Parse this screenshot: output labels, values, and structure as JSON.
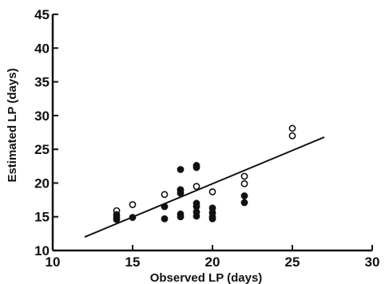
{
  "chart_data": {
    "type": "scatter",
    "title": "",
    "xlabel": "Observed LP (days)",
    "ylabel": "Estimated LP (days)",
    "xlim": [
      10,
      30
    ],
    "ylim": [
      10,
      45
    ],
    "xticks": [
      "10",
      "15",
      "20",
      "25",
      "30"
    ],
    "yticks": [
      "10",
      "15",
      "20",
      "25",
      "30",
      "35",
      "40",
      "45"
    ],
    "grid": false,
    "legend": "none",
    "series": [
      {
        "marker": "open-circle",
        "points": [
          [
            14,
            15.9
          ],
          [
            15,
            16.8
          ],
          [
            17,
            18.3
          ],
          [
            18,
            19.0
          ],
          [
            19,
            19.5
          ],
          [
            20,
            18.7
          ],
          [
            22,
            21.0
          ],
          [
            22,
            19.9
          ],
          [
            25,
            28.1
          ],
          [
            25,
            27.0
          ]
        ]
      },
      {
        "marker": "filled-circle",
        "points": [
          [
            14,
            15.3
          ],
          [
            14,
            14.9
          ],
          [
            14,
            14.6
          ],
          [
            15,
            14.9
          ],
          [
            17,
            16.5
          ],
          [
            17,
            14.7
          ],
          [
            18,
            22.0
          ],
          [
            18,
            19.0
          ],
          [
            18,
            18.5
          ],
          [
            18,
            15.4
          ],
          [
            18,
            15.0
          ],
          [
            19,
            22.6
          ],
          [
            19,
            22.3
          ],
          [
            19,
            17.0
          ],
          [
            19,
            16.5
          ],
          [
            19,
            15.7
          ],
          [
            19,
            15.1
          ],
          [
            20,
            16.3
          ],
          [
            20,
            15.6
          ],
          [
            20,
            15.0
          ],
          [
            20,
            14.7
          ],
          [
            22,
            18.1
          ],
          [
            22,
            17.1
          ]
        ]
      }
    ],
    "regression_line": {
      "x": [
        12,
        27
      ],
      "y": [
        12.0,
        26.8
      ]
    },
    "colors": {
      "ink": "#111111",
      "background": "#ffffff"
    }
  }
}
